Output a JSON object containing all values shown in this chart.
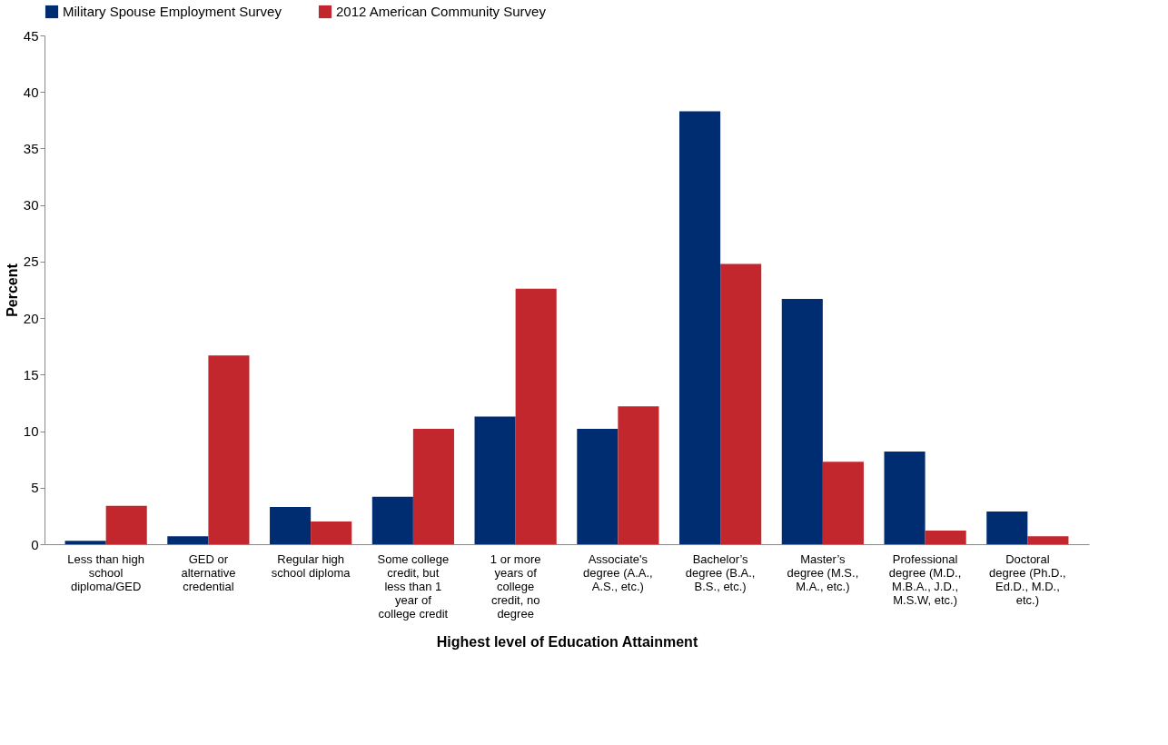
{
  "chart_data": {
    "type": "bar",
    "xlabel": "Highest level of Education Attainment",
    "ylabel": "Percent",
    "categories": [
      "Less than high school diploma/GED",
      "GED or alternative credential",
      "Regular high school diploma",
      "Some college credit, but less than 1 year of college credit",
      "1 or more years of college credit, no degree",
      "Associate's degree (A.A., A.S., etc.)",
      "Bachelor’s degree (B.A., B.S., etc.)",
      "Master’s degree (M.S., M.A., etc.)",
      "Professional degree (M.D., M.B.A., J.D., M.S.W, etc.)",
      "Doctoral degree (Ph.D., Ed.D., M.D., etc.)"
    ],
    "series": [
      {
        "name": "Military Spouse Employment Survey",
        "color": "#002d72",
        "values": [
          0.3,
          0.7,
          3.3,
          4.2,
          11.3,
          10.2,
          38.3,
          21.7,
          8.2,
          2.9
        ]
      },
      {
        "name": "2012 American Community Survey",
        "color": "#c1272d",
        "values": [
          3.4,
          16.7,
          2.0,
          10.2,
          22.6,
          12.2,
          24.8,
          7.3,
          1.2,
          0.7
        ]
      }
    ],
    "ylim": [
      0,
      45
    ],
    "yticks": [
      0,
      5,
      10,
      15,
      20,
      25,
      30,
      35,
      40,
      45
    ],
    "grid": false,
    "legend": "top"
  }
}
